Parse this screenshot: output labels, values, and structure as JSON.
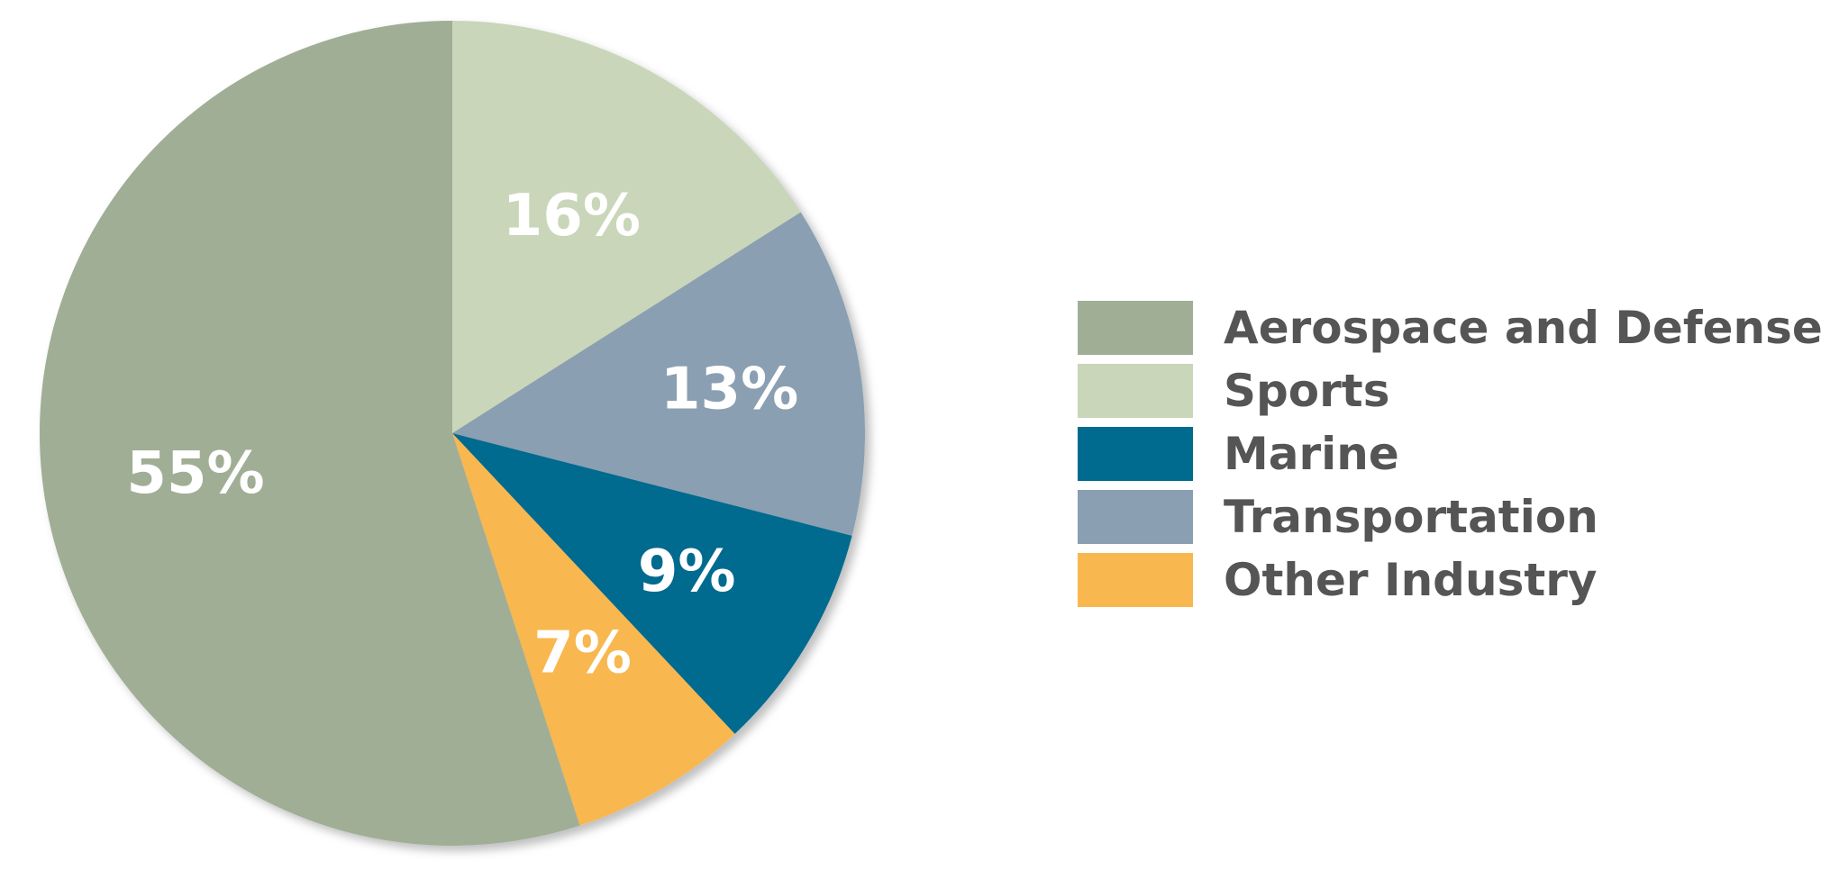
{
  "chart_data": {
    "type": "pie",
    "slices": [
      {
        "label": "Sports",
        "value": 16,
        "value_label": "16%",
        "color": "#c9d6b9"
      },
      {
        "label": "Transportation",
        "value": 13,
        "value_label": "13%",
        "color": "#8a9fb1"
      },
      {
        "label": "Marine",
        "value": 9,
        "value_label": "9%",
        "color": "#006b8f"
      },
      {
        "label": "Other Industry",
        "value": 7,
        "value_label": "7%",
        "color": "#f8b74f"
      },
      {
        "label": "Aerospace and Defense",
        "value": 55,
        "value_label": "55%",
        "color": "#a0ae96"
      }
    ],
    "legend": {
      "placement": "right",
      "entries": [
        {
          "label": "Aerospace and Defense",
          "color": "#a0ae96"
        },
        {
          "label": "Sports",
          "color": "#c9d6b9"
        },
        {
          "label": "Marine",
          "color": "#006b8f"
        },
        {
          "label": "Transportation",
          "color": "#8a9fb1"
        },
        {
          "label": "Other Industry",
          "color": "#f8b74f"
        }
      ]
    },
    "start_angle_deg": 0,
    "direction": "clockwise"
  }
}
